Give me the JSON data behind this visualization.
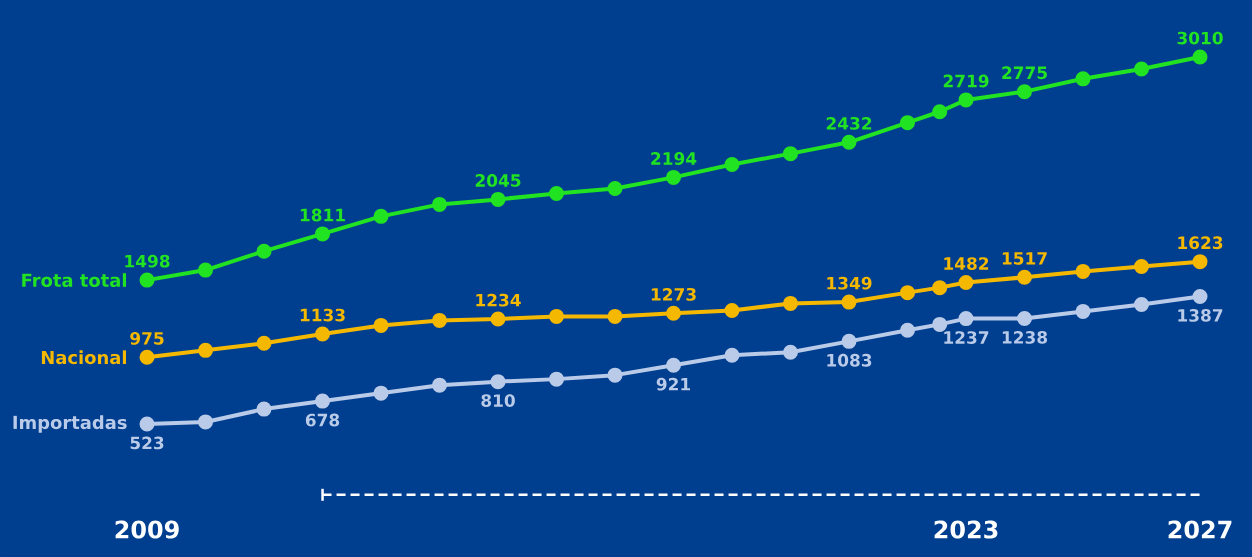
{
  "chart_data": {
    "type": "line",
    "x": [
      2009,
      2010,
      2011,
      2012,
      2013,
      2014,
      2015,
      2016,
      2017,
      2018,
      2019,
      2020,
      2021,
      2022,
      2022.55,
      2023,
      2024,
      2025,
      2026,
      2027
    ],
    "xlim": [
      2009,
      2027
    ],
    "xticks": [
      2009,
      2023,
      2027
    ],
    "tick_labels": "x",
    "marker": "circle",
    "line_style": "solid",
    "grid": false,
    "series": [
      {
        "name": "Frota total",
        "color": "#21e321",
        "values": [
          1498,
          1566,
          1694,
          1811,
          1930,
          2011,
          2045,
          2085,
          2119,
          2194,
          2281,
          2355,
          2432,
          2565,
          2639,
          2719,
          2775,
          2862,
          2929,
          3010
        ],
        "value_labels": [
          "1498",
          null,
          null,
          "1811",
          null,
          null,
          "2045",
          null,
          null,
          "2194",
          null,
          null,
          "2432",
          null,
          null,
          "2719",
          "2775",
          null,
          null,
          "3010"
        ]
      },
      {
        "name": "Nacional",
        "color": "#f5b800",
        "values": [
          975,
          1022,
          1070,
          1133,
          1191,
          1225,
          1234,
          1252,
          1252,
          1273,
          1292,
          1340,
          1349,
          1413,
          1447,
          1482,
          1517,
          1557,
          1590,
          1623
        ],
        "value_labels": [
          "975",
          null,
          null,
          "1133",
          null,
          null,
          "1234",
          null,
          null,
          "1273",
          null,
          null,
          "1349",
          null,
          null,
          "1482",
          "1517",
          null,
          null,
          "1623"
        ]
      },
      {
        "name": "Importadas",
        "color": "#b9cbe8",
        "values": [
          523,
          537,
          624,
          678,
          732,
          786,
          810,
          827,
          854,
          921,
          989,
          1009,
          1083,
          1158,
          1198,
          1237,
          1238,
          1286,
          1333,
          1387
        ],
        "value_labels": [
          "523",
          null,
          null,
          "678",
          null,
          null,
          "810",
          null,
          null,
          "921",
          null,
          null,
          "1083",
          null,
          null,
          "1237",
          "1238",
          null,
          null,
          "1387"
        ]
      }
    ]
  }
}
